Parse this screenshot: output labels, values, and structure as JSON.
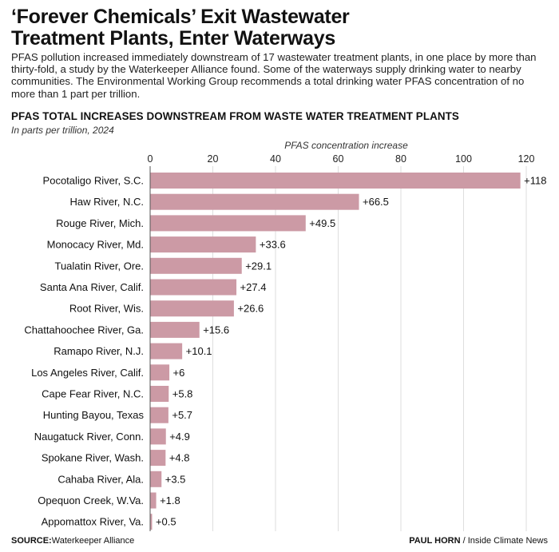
{
  "header": {
    "title_line1": "‘Forever Chemicals’ Exit Wastewater",
    "title_line2": "Treatment Plants, Enter Waterways",
    "intro": "PFAS pollution increased immediately downstream of 17 wastewater treatment plants, in one place by more than thirty-fold, a study by the Waterkeeper Alliance found. Some of the waterways supply drinking water to nearby communities. The Environmental Working Group recommends a total drinking water PFAS concentration of no more than 1 part per trillion."
  },
  "footer": {
    "source_label": "SOURCE:",
    "source": "Waterkeeper Alliance",
    "credit_author": "PAUL HORN",
    "credit_pub": " / Inside Climate News"
  },
  "chart_data": {
    "type": "bar",
    "orientation": "horizontal",
    "title": "PFAS TOTAL INCREASES DOWNSTREAM FROM WASTE WATER TREATMENT PLANTS",
    "subtitle": "In parts per trillion, 2024",
    "xlabel": "PFAS concentration increase",
    "xlim": [
      0,
      120
    ],
    "xticks": [
      0,
      20,
      40,
      60,
      80,
      100,
      120
    ],
    "bar_color": "#cc9aa5",
    "grid": "vertical",
    "categories": [
      "Pocotaligo River, S.C.",
      "Haw River, N.C.",
      "Rouge River, Mich.",
      "Monocacy River, Md.",
      "Tualatin River, Ore.",
      "Santa Ana River, Calif.",
      "Root River, Wis.",
      "Chattahoochee River, Ga.",
      "Ramapo River, N.J.",
      "Los Angeles River, Calif.",
      "Cape Fear River, N.C.",
      "Hunting Bayou, Texas",
      "Naugatuck River, Conn.",
      "Spokane River, Wash.",
      "Cahaba River, Ala.",
      "Opequon Creek, W.Va.",
      "Appomattox River, Va."
    ],
    "values": [
      118,
      66.5,
      49.5,
      33.6,
      29.1,
      27.4,
      26.6,
      15.6,
      10.1,
      6,
      5.8,
      5.7,
      4.9,
      4.8,
      3.5,
      1.8,
      0.5
    ],
    "value_labels": [
      "+118",
      "+66.5",
      "+49.5",
      "+33.6",
      "+29.1",
      "+27.4",
      "+26.6",
      "+15.6",
      "+10.1",
      "+6",
      "+5.8",
      "+5.7",
      "+4.9",
      "+4.8",
      "+3.5",
      "+1.8",
      "+0.5"
    ]
  }
}
